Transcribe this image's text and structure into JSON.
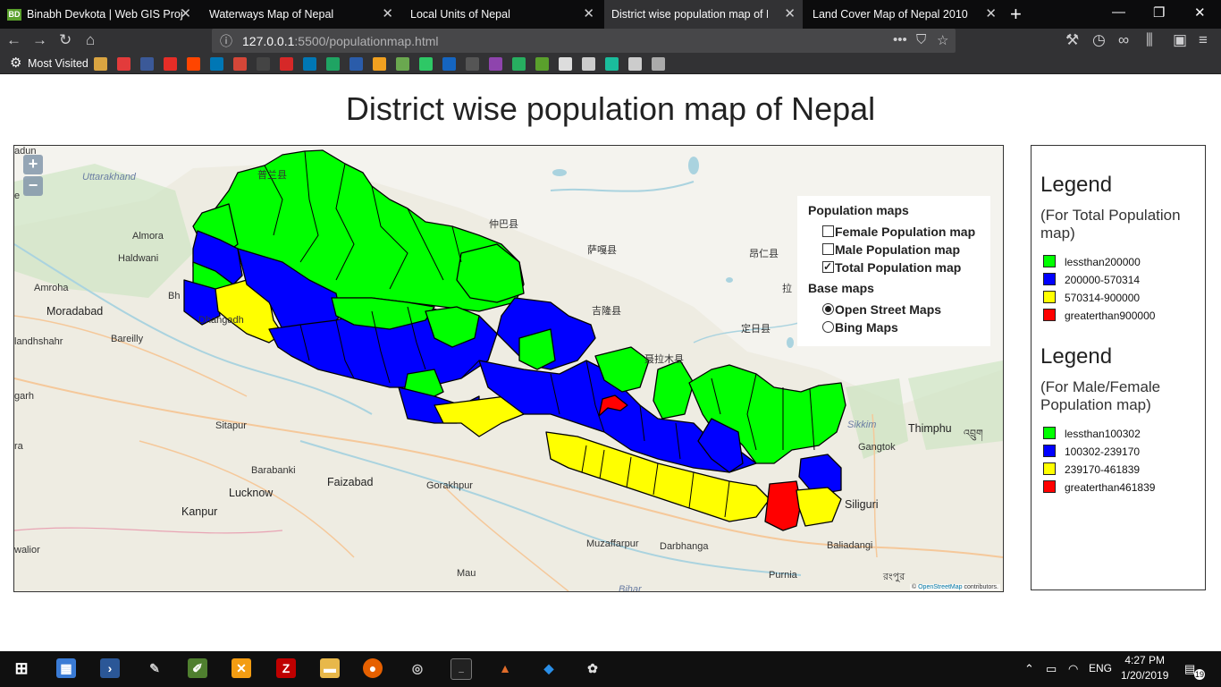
{
  "browser": {
    "tabs": [
      {
        "title": "Binabh Devkota | Web GIS Proje",
        "favicon": "BD",
        "active": false
      },
      {
        "title": "Waterways Map of Nepal",
        "active": false
      },
      {
        "title": "Local Units of Nepal",
        "active": false
      },
      {
        "title": "District wise population map of Nepal",
        "active": true
      },
      {
        "title": "Land Cover Map of Nepal 2010",
        "active": false
      }
    ],
    "close_glyph": "✕",
    "new_tab_glyph": "+",
    "url_host": "127.0.0.1",
    "url_rest": ":5500/populationmap.html",
    "url_dots": "•••",
    "bookmarks_label": "Most Visited",
    "bookmark_icons": [
      {
        "name": "folder-icon",
        "color": "#d9a441"
      },
      {
        "name": "medium-icon",
        "color": "#e33b3b"
      },
      {
        "name": "facebook-icon",
        "color": "#3b5998"
      },
      {
        "name": "youtube-icon",
        "color": "#e52d27"
      },
      {
        "name": "reddit-icon",
        "color": "#ff4500"
      },
      {
        "name": "linkedin-icon",
        "color": "#0077b5"
      },
      {
        "name": "gmail-icon",
        "color": "#d44638"
      },
      {
        "name": "github-icon",
        "color": "#444444"
      },
      {
        "name": "arrow-icon",
        "color": "#d62828"
      },
      {
        "name": "linkedin-icon",
        "color": "#0077b5"
      },
      {
        "name": "drive-icon",
        "color": "#1fa463"
      },
      {
        "name": "m-icon",
        "color": "#2a5caa"
      },
      {
        "name": "hourglass-icon",
        "color": "#f0a020"
      },
      {
        "name": "map-icon",
        "color": "#6aa84f"
      },
      {
        "name": "hackerrank-icon",
        "color": "#2ec866"
      },
      {
        "name": "np-icon",
        "color": "#1565c0"
      },
      {
        "name": "cat-icon",
        "color": "#555555"
      },
      {
        "name": "infinity-icon",
        "color": "#8e44ad"
      },
      {
        "name": "c-icon",
        "color": "#27ae60"
      },
      {
        "name": "bd-icon",
        "color": "#5aa02c"
      },
      {
        "name": "feather-icon",
        "color": "#dddddd"
      },
      {
        "name": "globe-icon",
        "color": "#cccccc"
      },
      {
        "name": "o-icon",
        "color": "#1abc9c"
      },
      {
        "name": "globe-icon",
        "color": "#cccccc"
      },
      {
        "name": "check-icon",
        "color": "#aaaaaa"
      }
    ]
  },
  "page": {
    "title": "District wise population map of Nepal"
  },
  "map": {
    "zoom_in": "+",
    "zoom_out": "−",
    "attribution_prefix": "© ",
    "attribution_link": "OpenStreetMap",
    "attribution_suffix": " contributors.",
    "labels": {
      "uttarakhand": "Uttarakhand",
      "almora": "Almora",
      "haldwani": "Haldwani",
      "amroha": "Amroha",
      "moradabad": "Moradabad",
      "bareilly": "Bareilly",
      "jalandhshahr": "landhshahr",
      "garh": "garh",
      "sitapur": "Sitapur",
      "ra": "ra",
      "barabanki": "Barabanki",
      "lucknow": "Lucknow",
      "faizabad": "Faizabad",
      "gorakhpur": "Gorakhpur",
      "kanpur": "Kanpur",
      "walior": "walior",
      "muzaffarpur": "Muzaffarpur",
      "darbhanga": "Darbhanga",
      "mau": "Mau",
      "purnia": "Purnia",
      "siliguri": "Siliguri",
      "baliadangi": "Baliadangi",
      "gangtok": "Gangtok",
      "sikkim": "Sikkim",
      "thimphu": "Thimphu",
      "dhangadhi": "Dhangadh",
      "bh": "Bh",
      "dun": "adun",
      "e": "e",
      "zhongba": "仲巴县",
      "saga": "萨嘎县",
      "ngamring": "昂仁县",
      "gyirong": "吉隆县",
      "dingri": "定日县",
      "nyalam": "聂拉木县",
      "burang": "普兰县",
      "la": "拉",
      "bhutan_script": "འབྲུག",
      "bihar": "Bihar",
      "bangla": "রংপুর"
    },
    "layer_switcher": {
      "population_header": "Population maps",
      "overlays": [
        {
          "label": "Female Population map",
          "checked": false
        },
        {
          "label": "Male Population map",
          "checked": false
        },
        {
          "label": "Total Population map",
          "checked": true
        }
      ],
      "base_header": "Base maps",
      "base_layers": [
        {
          "label": "Open Street Maps",
          "checked": true
        },
        {
          "label": "Bing Maps",
          "checked": false
        }
      ]
    },
    "class_colors": {
      "low": "#00ff00",
      "mid": "#0000ff",
      "high": "#ffff00",
      "top": "#ff0000"
    }
  },
  "legend": {
    "total": {
      "title": "Legend",
      "subtitle": "(For Total Population map)",
      "items": [
        {
          "label": "lessthan200000",
          "color": "#00ff00"
        },
        {
          "label": "200000-570314",
          "color": "#0000ff"
        },
        {
          "label": "570314-900000",
          "color": "#ffff00"
        },
        {
          "label": "greaterthan900000",
          "color": "#ff0000"
        }
      ]
    },
    "gender": {
      "title": "Legend",
      "subtitle": "(For Male/Female Population map)",
      "items": [
        {
          "label": "lessthan100302",
          "color": "#00ff00"
        },
        {
          "label": "100302-239170",
          "color": "#0000ff"
        },
        {
          "label": "239170-461839",
          "color": "#ffff00"
        },
        {
          "label": "greaterthan461839",
          "color": "#ff0000"
        }
      ]
    }
  },
  "taskbar": {
    "time": "4:27 PM",
    "date": "1/20/2019",
    "language": "ENG",
    "notifications": "19"
  }
}
